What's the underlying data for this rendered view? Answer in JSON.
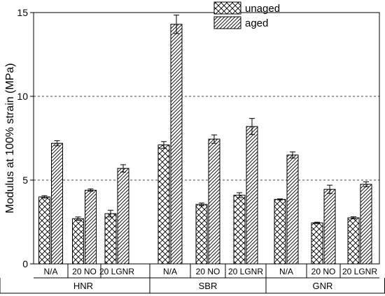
{
  "chart_data": {
    "type": "bar",
    "ylabel": "Modulus at 100% strain (MPa)",
    "ylim": [
      0,
      15
    ],
    "yticks": [
      0,
      5,
      10,
      15
    ],
    "grid": "dashed horizontal at 5 and 10",
    "legend_position": "top-center",
    "groups": [
      {
        "name": "HNR",
        "categories": [
          "N/A",
          "20 NO",
          "20 LGNR"
        ]
      },
      {
        "name": "SBR",
        "categories": [
          "N/A",
          "20 NO",
          "20 LGNR"
        ]
      },
      {
        "name": "GNR",
        "categories": [
          "N/A",
          "20 NO",
          "20 LGNR"
        ]
      }
    ],
    "series": [
      {
        "name": "unaged",
        "pattern": "crosshatch",
        "values": [
          4.0,
          2.7,
          3.0,
          7.1,
          3.55,
          4.1,
          3.85,
          2.45,
          2.75
        ],
        "errors": [
          0.07,
          0.1,
          0.2,
          0.2,
          0.08,
          0.15,
          0.03,
          0.04,
          0.06
        ]
      },
      {
        "name": "aged",
        "pattern": "diagonal",
        "values": [
          7.2,
          4.4,
          5.7,
          14.3,
          7.45,
          8.2,
          6.5,
          4.45,
          4.75
        ],
        "errors": [
          0.15,
          0.07,
          0.22,
          0.55,
          0.25,
          0.48,
          0.18,
          0.25,
          0.15
        ]
      }
    ]
  }
}
